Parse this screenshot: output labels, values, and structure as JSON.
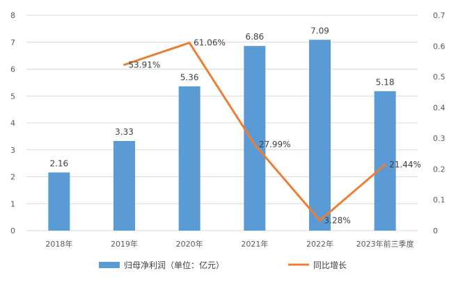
{
  "chart_data": {
    "type": "bar+line",
    "categories": [
      "2018年",
      "2019年",
      "2020年",
      "2021年",
      "2022年",
      "2023年前三季度"
    ],
    "series": [
      {
        "name": "归母净利润（单位：亿元）",
        "type": "bar",
        "axis": "left",
        "color": "#5B9BD5",
        "values": [
          2.16,
          3.33,
          5.36,
          6.86,
          7.09,
          5.18
        ],
        "labels": [
          "2.16",
          "3.33",
          "5.36",
          "6.86",
          "7.09",
          "5.18"
        ]
      },
      {
        "name": "同比增长",
        "type": "line",
        "axis": "right",
        "color": "#ED7D31",
        "values": [
          null,
          0.5391,
          0.6106,
          0.2799,
          0.0328,
          0.2144
        ],
        "labels": [
          null,
          "53.91%",
          "61.06%",
          "27.99%",
          "3.28%",
          "21.44%"
        ]
      }
    ],
    "y_left": {
      "min": 0,
      "max": 8,
      "ticks": [
        "0",
        "1",
        "2",
        "3",
        "4",
        "5",
        "6",
        "7",
        "8"
      ]
    },
    "y_right": {
      "min": 0,
      "max": 0.7,
      "ticks": [
        "0",
        "0.1",
        "0.2",
        "0.3",
        "0.4",
        "0.5",
        "0.6",
        "0.7"
      ]
    },
    "grid": true,
    "legend_position": "bottom"
  }
}
